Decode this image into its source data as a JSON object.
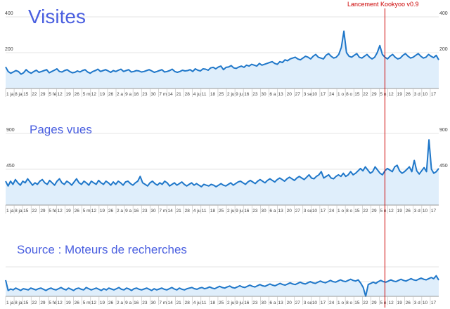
{
  "event": {
    "label": "Lancement Kookyoo v0.9",
    "color": "#cc0000"
  },
  "colors": {
    "line": "#1f77c9",
    "fill": "#dfeefb",
    "grid": "#e6e6e6",
    "tick_text": "#444444",
    "title": "#4a5fe0"
  },
  "x_tick_labels": [
    "1 ja",
    "8 ja",
    "15",
    "22",
    "29",
    "5 fé",
    "12",
    "19",
    "26",
    "5 m",
    "12",
    "19",
    "26",
    "2 a",
    "9 a",
    "16",
    "23",
    "30",
    "7 m",
    "14",
    "21",
    "28",
    "4 ju",
    "11",
    "18",
    "25",
    "2 ju",
    "9 ju",
    "16",
    "23",
    "30",
    "6 a",
    "13",
    "20",
    "27",
    "3 se",
    "10",
    "17",
    "24",
    "1 o",
    "8 o",
    "15",
    "22",
    "29",
    "5 n",
    "12",
    "19",
    "26",
    "3 d",
    "10",
    "17"
  ],
  "chart_data": [
    {
      "type": "area",
      "title": "Visites",
      "y_ticks": [
        200,
        400
      ],
      "ylim": [
        0,
        400
      ],
      "grid": true,
      "values": [
        120,
        95,
        85,
        92,
        100,
        95,
        80,
        88,
        105,
        92,
        85,
        95,
        102,
        90,
        95,
        100,
        105,
        88,
        95,
        102,
        110,
        95,
        92,
        100,
        105,
        95,
        88,
        90,
        98,
        92,
        100,
        105,
        92,
        85,
        95,
        100,
        108,
        95,
        100,
        105,
        98,
        90,
        100,
        95,
        102,
        108,
        95,
        100,
        105,
        92,
        95,
        100,
        98,
        92,
        95,
        100,
        105,
        98,
        90,
        95,
        100,
        105,
        92,
        95,
        100,
        108,
        95,
        90,
        95,
        102,
        98,
        100,
        105,
        95,
        110,
        102,
        98,
        110,
        108,
        102,
        115,
        118,
        110,
        120,
        125,
        105,
        118,
        120,
        128,
        115,
        112,
        120,
        125,
        118,
        130,
        125,
        135,
        130,
        125,
        140,
        130,
        135,
        140,
        145,
        150,
        140,
        135,
        150,
        145,
        160,
        155,
        165,
        170,
        175,
        165,
        160,
        170,
        180,
        175,
        165,
        180,
        190,
        175,
        170,
        165,
        185,
        195,
        180,
        170,
        175,
        190,
        230,
        320,
        200,
        180,
        175,
        185,
        195,
        175,
        170,
        180,
        190,
        175,
        165,
        175,
        200,
        240,
        190,
        175,
        165,
        180,
        190,
        175,
        165,
        170,
        185,
        195,
        180,
        170,
        175,
        185,
        195,
        180,
        170,
        175,
        190,
        180,
        172,
        185,
        160
      ],
      "event_index": 148
    },
    {
      "type": "area",
      "title": "Pages vues",
      "y_ticks": [
        450,
        900
      ],
      "ylim": [
        0,
        900
      ],
      "grid": true,
      "values": [
        300,
        240,
        300,
        260,
        320,
        280,
        250,
        300,
        280,
        330,
        290,
        250,
        280,
        260,
        300,
        320,
        280,
        260,
        310,
        280,
        250,
        300,
        330,
        280,
        260,
        300,
        280,
        250,
        290,
        330,
        280,
        260,
        300,
        280,
        250,
        300,
        280,
        260,
        310,
        280,
        260,
        300,
        280,
        250,
        290,
        260,
        300,
        280,
        250,
        290,
        300,
        270,
        250,
        280,
        300,
        360,
        280,
        260,
        240,
        280,
        300,
        270,
        250,
        280,
        260,
        300,
        280,
        240,
        260,
        280,
        250,
        270,
        290,
        260,
        240,
        260,
        280,
        250,
        270,
        250,
        230,
        260,
        250,
        240,
        260,
        250,
        230,
        250,
        270,
        250,
        240,
        260,
        280,
        250,
        270,
        290,
        300,
        280,
        260,
        290,
        310,
        290,
        270,
        300,
        320,
        300,
        280,
        310,
        330,
        310,
        290,
        320,
        340,
        320,
        300,
        330,
        350,
        330,
        310,
        340,
        360,
        340,
        320,
        350,
        380,
        340,
        330,
        360,
        380,
        420,
        340,
        360,
        380,
        340,
        330,
        360,
        380,
        360,
        400,
        360,
        380,
        420,
        380,
        400,
        430,
        460,
        430,
        480,
        440,
        400,
        420,
        480,
        440,
        400,
        380,
        430,
        460,
        440,
        420,
        480,
        500,
        430,
        400,
        420,
        450,
        480,
        420,
        560,
        430,
        390,
        430,
        470,
        420,
        820,
        450,
        400,
        420,
        460
      ],
      "event_index": 148
    },
    {
      "type": "area",
      "title": "Source : Moteurs de recherches",
      "y_ticks": [],
      "ylim": [
        0,
        100
      ],
      "grid": true,
      "values": [
        55,
        20,
        25,
        22,
        28,
        24,
        20,
        26,
        24,
        22,
        28,
        25,
        22,
        26,
        28,
        24,
        20,
        25,
        28,
        24,
        22,
        26,
        30,
        25,
        22,
        28,
        24,
        20,
        26,
        28,
        24,
        22,
        30,
        26,
        22,
        25,
        28,
        24,
        20,
        26,
        22,
        28,
        25,
        22,
        26,
        30,
        24,
        22,
        28,
        25,
        20,
        26,
        28,
        24,
        22,
        25,
        28,
        24,
        20,
        26,
        22,
        25,
        28,
        24,
        22,
        26,
        30,
        25,
        22,
        28,
        24,
        22,
        26,
        28,
        30,
        26,
        24,
        28,
        30,
        26,
        28,
        32,
        28,
        26,
        30,
        34,
        30,
        28,
        32,
        35,
        30,
        28,
        32,
        36,
        32,
        30,
        34,
        38,
        34,
        32,
        36,
        40,
        36,
        34,
        38,
        42,
        38,
        36,
        40,
        44,
        40,
        38,
        42,
        46,
        42,
        40,
        44,
        48,
        44,
        42,
        46,
        50,
        46,
        44,
        48,
        52,
        48,
        46,
        50,
        54,
        50,
        48,
        52,
        56,
        52,
        50,
        54,
        58,
        54,
        52,
        56,
        45,
        30,
        -5,
        40,
        44,
        48,
        44,
        50,
        54,
        50,
        48,
        52,
        56,
        52,
        50,
        54,
        58,
        54,
        52,
        56,
        60,
        56,
        54,
        58,
        62,
        58,
        56,
        60,
        64,
        60,
        70,
        55
      ],
      "event_index": 148
    }
  ]
}
